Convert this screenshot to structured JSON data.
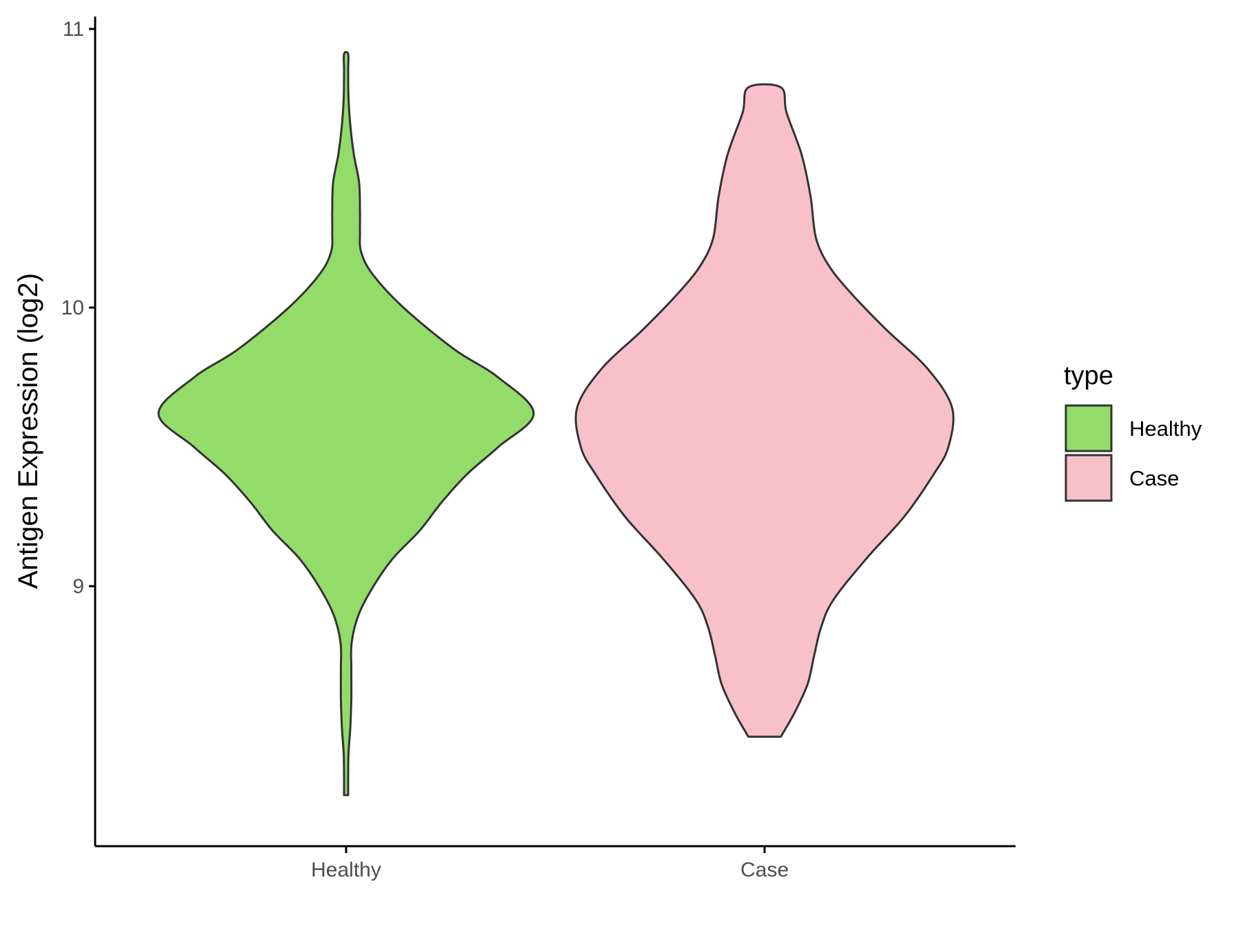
{
  "chart_data": {
    "type": "violin",
    "ylabel": "Antigen Expression (log2)",
    "xlabel": "",
    "categories": [
      "Healthy",
      "Case"
    ],
    "y_ticks": [
      9,
      10,
      11
    ],
    "ylim": [
      8.05,
      11.05
    ],
    "grid": false,
    "legend": {
      "title": "type",
      "position": "right",
      "entries": [
        "Healthy",
        "Case"
      ]
    },
    "colors": {
      "Healthy": "#93DC69",
      "Case": "#F7C0CB",
      "outline": "#333333"
    },
    "series": [
      {
        "name": "Healthy",
        "min": 8.25,
        "max": 10.91,
        "density_profile": [
          [
            8.25,
            0.011
          ],
          [
            8.32,
            0.011
          ],
          [
            8.4,
            0.013
          ],
          [
            8.5,
            0.023
          ],
          [
            8.6,
            0.028
          ],
          [
            8.7,
            0.028
          ],
          [
            8.8,
            0.03
          ],
          [
            8.9,
            0.068
          ],
          [
            9.0,
            0.146
          ],
          [
            9.1,
            0.25
          ],
          [
            9.2,
            0.393
          ],
          [
            9.3,
            0.508
          ],
          [
            9.4,
            0.642
          ],
          [
            9.5,
            0.812
          ],
          [
            9.62,
            1.0
          ],
          [
            9.75,
            0.81
          ],
          [
            9.85,
            0.577
          ],
          [
            10.0,
            0.306
          ],
          [
            10.12,
            0.141
          ],
          [
            10.2,
            0.08
          ],
          [
            10.27,
            0.074
          ],
          [
            10.35,
            0.074
          ],
          [
            10.45,
            0.069
          ],
          [
            10.55,
            0.041
          ],
          [
            10.65,
            0.023
          ],
          [
            10.75,
            0.013
          ],
          [
            10.85,
            0.011
          ],
          [
            10.91,
            0.011
          ]
        ]
      },
      {
        "name": "Case",
        "min": 8.46,
        "max": 10.79,
        "density_profile": [
          [
            8.46,
            0.087
          ],
          [
            8.55,
            0.163
          ],
          [
            8.65,
            0.23
          ],
          [
            8.75,
            0.264
          ],
          [
            8.85,
            0.3
          ],
          [
            8.95,
            0.366
          ],
          [
            9.1,
            0.544
          ],
          [
            9.25,
            0.745
          ],
          [
            9.4,
            0.9
          ],
          [
            9.5,
            0.98
          ],
          [
            9.64,
            1.0
          ],
          [
            9.78,
            0.87
          ],
          [
            9.92,
            0.65
          ],
          [
            10.05,
            0.463
          ],
          [
            10.15,
            0.343
          ],
          [
            10.25,
            0.274
          ],
          [
            10.4,
            0.245
          ],
          [
            10.55,
            0.197
          ],
          [
            10.7,
            0.117
          ],
          [
            10.79,
            0.087
          ]
        ]
      }
    ]
  }
}
